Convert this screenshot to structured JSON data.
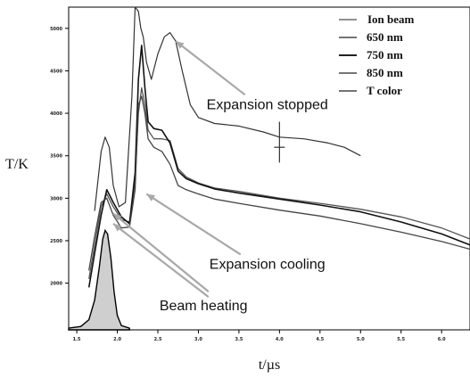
{
  "chart_data": {
    "type": "line",
    "title": "",
    "xlabel": "t/µs",
    "ylabel": "T/K",
    "xlim": [
      1.4,
      6.35
    ],
    "ylim": [
      1450,
      5250
    ],
    "grid": false,
    "legend_position": "top-right",
    "x_ticks": [
      "1.5",
      "2.0",
      "2.5",
      "3.0",
      "3.5",
      "4.0",
      "4.5",
      "5.0",
      "5.5",
      "6.0"
    ],
    "y_ticks": [
      "2000",
      "2500",
      "3000",
      "3500",
      "4000",
      "4500",
      "5000"
    ],
    "colors": {
      "ion_beam_fill": "#cfcfcf",
      "c650": "#555555",
      "c750": "#111111",
      "c850": "#444444",
      "tcolor": "#333333",
      "arrow": "#a8a8a8"
    },
    "series": [
      {
        "name": "Ion beam",
        "style": "filled",
        "x": [
          1.4,
          1.55,
          1.65,
          1.72,
          1.78,
          1.82,
          1.85,
          1.88,
          1.92,
          1.96,
          2.0,
          2.05,
          2.15
        ],
        "y": [
          1470,
          1490,
          1570,
          1800,
          2200,
          2520,
          2620,
          2580,
          2300,
          1900,
          1620,
          1500,
          1470
        ]
      },
      {
        "name": "650 nm",
        "x": [
          1.65,
          1.72,
          1.8,
          1.87,
          1.95,
          2.05,
          2.15,
          2.22,
          2.26,
          2.3,
          2.34,
          2.38,
          2.45,
          2.55,
          2.65,
          2.75,
          2.85,
          3.0,
          3.2,
          3.5,
          4.0,
          4.5,
          5.0,
          5.5,
          6.0,
          6.35
        ],
        "y": [
          2050,
          2450,
          2900,
          3050,
          2900,
          2750,
          2720,
          3200,
          4000,
          4300,
          4100,
          3800,
          3700,
          3700,
          3680,
          3350,
          3250,
          3180,
          3120,
          3080,
          3000,
          2940,
          2870,
          2780,
          2650,
          2520
        ]
      },
      {
        "name": "750 nm",
        "x": [
          1.65,
          1.72,
          1.8,
          1.87,
          1.95,
          2.05,
          2.15,
          2.22,
          2.26,
          2.3,
          2.34,
          2.38,
          2.45,
          2.55,
          2.65,
          2.75,
          2.85,
          3.0,
          3.2,
          3.5,
          4.0,
          4.5,
          5.0,
          5.5,
          6.0,
          6.35
        ],
        "y": [
          1950,
          2350,
          2800,
          3100,
          2950,
          2780,
          2700,
          3300,
          4400,
          4800,
          4300,
          3900,
          3820,
          3800,
          3650,
          3320,
          3230,
          3170,
          3110,
          3060,
          2990,
          2920,
          2840,
          2720,
          2580,
          2450
        ]
      },
      {
        "name": "850 nm",
        "x": [
          1.65,
          1.72,
          1.8,
          1.87,
          1.95,
          2.05,
          2.15,
          2.22,
          2.26,
          2.3,
          2.34,
          2.38,
          2.45,
          2.55,
          2.65,
          2.75,
          2.85,
          3.0,
          3.2,
          3.5,
          4.0,
          4.5,
          5.0,
          5.5,
          6.0,
          6.35
        ],
        "y": [
          2150,
          2550,
          2950,
          3000,
          2800,
          2650,
          2660,
          3100,
          4100,
          4200,
          4000,
          3700,
          3600,
          3550,
          3400,
          3150,
          3100,
          3050,
          2990,
          2940,
          2860,
          2790,
          2700,
          2600,
          2490,
          2400
        ]
      },
      {
        "name": "T color",
        "x": [
          1.72,
          1.8,
          1.85,
          1.9,
          1.95,
          2.02,
          2.1,
          2.18,
          2.22,
          2.26,
          2.29,
          2.32,
          2.36,
          2.42,
          2.5,
          2.58,
          2.65,
          2.72,
          2.8,
          2.9,
          3.0,
          3.2,
          3.5,
          3.8,
          4.0,
          4.3,
          4.6,
          4.8,
          5.0
        ],
        "y": [
          2850,
          3550,
          3720,
          3600,
          3150,
          2900,
          2950,
          4200,
          5250,
          5200,
          5000,
          4900,
          4600,
          4400,
          4700,
          4900,
          4950,
          4850,
          4500,
          4100,
          3950,
          3880,
          3850,
          3780,
          3720,
          3700,
          3650,
          3600,
          3500
        ]
      }
    ],
    "error_bar": {
      "x": 4.0,
      "y": 3600,
      "low": 3420,
      "high": 3900
    },
    "annotations": [
      {
        "text": "Expansion stopped",
        "text_x": 3.85,
        "text_y": 4050,
        "arrows": [
          {
            "x": 2.72,
            "y": 4850
          }
        ]
      },
      {
        "text": "Expansion cooling",
        "text_x": 3.85,
        "text_y": 2170,
        "arrows": [
          {
            "x": 2.36,
            "y": 3050
          }
        ]
      },
      {
        "text": "Beam heating",
        "text_x": 2.52,
        "text_y": 1680,
        "arrows": [
          {
            "x": 1.95,
            "y": 2700
          },
          {
            "x": 1.95,
            "y": 2820
          }
        ]
      }
    ]
  }
}
